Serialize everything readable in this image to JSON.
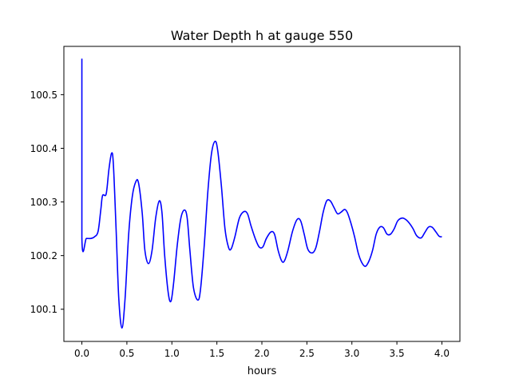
{
  "chart_data": {
    "type": "line",
    "title": "Water Depth h at gauge 550",
    "xlabel": "hours",
    "ylabel": "",
    "xlim": [
      -0.2,
      4.2
    ],
    "ylim": [
      100.04,
      100.59
    ],
    "xticks": [
      0.0,
      0.5,
      1.0,
      1.5,
      2.0,
      2.5,
      3.0,
      3.5,
      4.0
    ],
    "xtick_labels": [
      "0.0",
      "0.5",
      "1.0",
      "1.5",
      "2.0",
      "2.5",
      "3.0",
      "3.5",
      "4.0"
    ],
    "yticks": [
      100.1,
      100.2,
      100.3,
      100.4,
      100.5
    ],
    "ytick_labels": [
      "100.1",
      "100.2",
      "100.3",
      "100.4",
      "100.5"
    ],
    "grid": false,
    "series": [
      {
        "color": "#0000ff",
        "points": [
          [
            0.0,
            100.567
          ],
          [
            0.0,
            100.232
          ],
          [
            0.05,
            100.232
          ],
          [
            0.1,
            100.232
          ],
          [
            0.14,
            100.235
          ],
          [
            0.18,
            100.245
          ],
          [
            0.21,
            100.285
          ],
          [
            0.23,
            100.312
          ],
          [
            0.27,
            100.315
          ],
          [
            0.3,
            100.36
          ],
          [
            0.33,
            100.391
          ],
          [
            0.35,
            100.37
          ],
          [
            0.38,
            100.25
          ],
          [
            0.41,
            100.12
          ],
          [
            0.445,
            100.065
          ],
          [
            0.48,
            100.12
          ],
          [
            0.52,
            100.24
          ],
          [
            0.56,
            100.31
          ],
          [
            0.6,
            100.338
          ],
          [
            0.63,
            100.335
          ],
          [
            0.67,
            100.28
          ],
          [
            0.7,
            100.21
          ],
          [
            0.74,
            100.185
          ],
          [
            0.78,
            100.21
          ],
          [
            0.82,
            100.27
          ],
          [
            0.86,
            100.302
          ],
          [
            0.89,
            100.28
          ],
          [
            0.92,
            100.2
          ],
          [
            0.96,
            100.13
          ],
          [
            0.99,
            100.115
          ],
          [
            1.02,
            100.15
          ],
          [
            1.06,
            100.22
          ],
          [
            1.1,
            100.27
          ],
          [
            1.14,
            100.285
          ],
          [
            1.17,
            100.27
          ],
          [
            1.2,
            100.21
          ],
          [
            1.24,
            100.14
          ],
          [
            1.29,
            100.117
          ],
          [
            1.32,
            100.14
          ],
          [
            1.36,
            100.22
          ],
          [
            1.4,
            100.32
          ],
          [
            1.44,
            100.39
          ],
          [
            1.48,
            100.413
          ],
          [
            1.51,
            100.395
          ],
          [
            1.55,
            100.33
          ],
          [
            1.59,
            100.25
          ],
          [
            1.63,
            100.215
          ],
          [
            1.66,
            100.213
          ],
          [
            1.7,
            100.235
          ],
          [
            1.75,
            100.27
          ],
          [
            1.8,
            100.282
          ],
          [
            1.84,
            100.278
          ],
          [
            1.88,
            100.255
          ],
          [
            1.93,
            100.23
          ],
          [
            1.97,
            100.216
          ],
          [
            2.01,
            100.216
          ],
          [
            2.05,
            100.232
          ],
          [
            2.1,
            100.244
          ],
          [
            2.14,
            100.24
          ],
          [
            2.18,
            100.21
          ],
          [
            2.22,
            100.19
          ],
          [
            2.25,
            100.19
          ],
          [
            2.29,
            100.21
          ],
          [
            2.34,
            100.245
          ],
          [
            2.39,
            100.267
          ],
          [
            2.43,
            100.265
          ],
          [
            2.47,
            100.24
          ],
          [
            2.51,
            100.212
          ],
          [
            2.56,
            100.205
          ],
          [
            2.6,
            100.215
          ],
          [
            2.64,
            100.245
          ],
          [
            2.68,
            100.28
          ],
          [
            2.72,
            100.302
          ],
          [
            2.76,
            100.302
          ],
          [
            2.8,
            100.29
          ],
          [
            2.84,
            100.278
          ],
          [
            2.88,
            100.281
          ],
          [
            2.92,
            100.286
          ],
          [
            2.95,
            100.28
          ],
          [
            2.99,
            100.26
          ],
          [
            3.03,
            100.235
          ],
          [
            3.07,
            100.205
          ],
          [
            3.11,
            100.187
          ],
          [
            3.15,
            100.18
          ],
          [
            3.19,
            100.19
          ],
          [
            3.23,
            100.21
          ],
          [
            3.27,
            100.24
          ],
          [
            3.31,
            100.253
          ],
          [
            3.35,
            100.252
          ],
          [
            3.39,
            100.24
          ],
          [
            3.43,
            100.24
          ],
          [
            3.47,
            100.25
          ],
          [
            3.51,
            100.265
          ],
          [
            3.56,
            100.27
          ],
          [
            3.6,
            100.267
          ],
          [
            3.64,
            100.26
          ],
          [
            3.68,
            100.25
          ],
          [
            3.72,
            100.237
          ],
          [
            3.77,
            100.233
          ],
          [
            3.81,
            100.243
          ],
          [
            3.85,
            100.253
          ],
          [
            3.89,
            100.253
          ],
          [
            3.93,
            100.245
          ],
          [
            3.97,
            100.236
          ],
          [
            4.0,
            100.235
          ]
        ]
      }
    ]
  }
}
